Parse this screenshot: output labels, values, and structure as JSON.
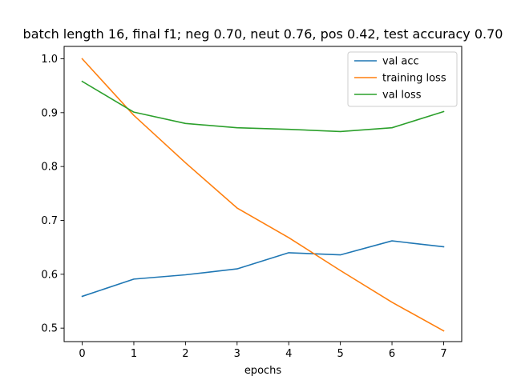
{
  "chart_data": {
    "type": "line",
    "title": "batch length 16, final f1; neg 0.70, neut 0.76, pos 0.42, test accuracy 0.70",
    "xlabel": "epochs",
    "ylabel": "",
    "x": [
      0,
      1,
      2,
      3,
      4,
      5,
      6,
      7
    ],
    "xlim": [
      -0.35,
      7.35
    ],
    "ylim": [
      0.475,
      1.023
    ],
    "xticks": [
      "0",
      "1",
      "2",
      "3",
      "4",
      "5",
      "6",
      "7"
    ],
    "yticks": [
      "0.5",
      "0.6",
      "0.7",
      "0.8",
      "0.9",
      "1.0"
    ],
    "grid": false,
    "legend_position": "top-right",
    "series": [
      {
        "name": "val acc",
        "color": "#1f77b4",
        "values": [
          0.559,
          0.591,
          0.599,
          0.61,
          0.64,
          0.636,
          0.662,
          0.651
        ]
      },
      {
        "name": "training loss",
        "color": "#ff7f0e",
        "values": [
          1.0,
          0.895,
          0.807,
          0.723,
          0.668,
          0.607,
          0.548,
          0.495
        ]
      },
      {
        "name": "val loss",
        "color": "#2ca02c",
        "values": [
          0.958,
          0.901,
          0.88,
          0.872,
          0.869,
          0.865,
          0.872,
          0.902
        ]
      }
    ]
  }
}
